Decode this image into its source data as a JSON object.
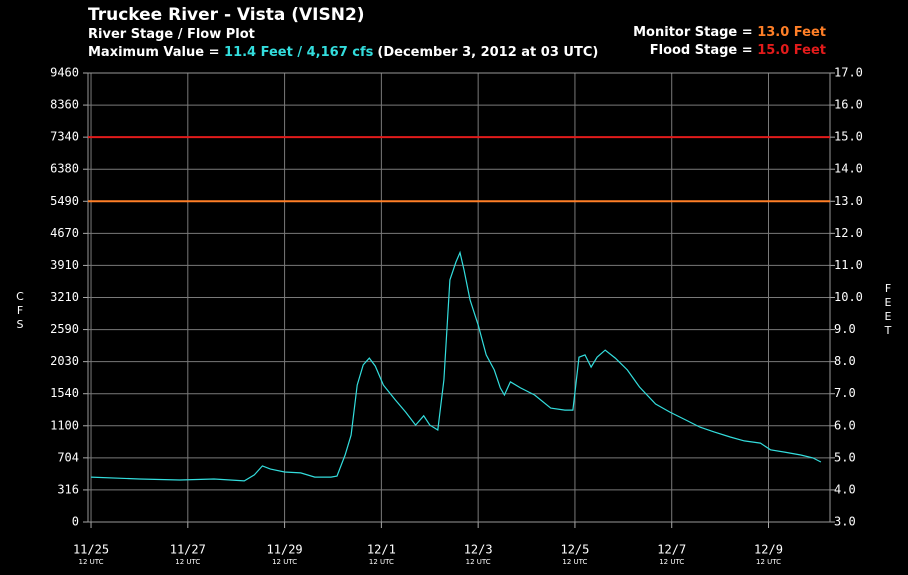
{
  "chart_data": {
    "type": "line",
    "title": "Truckee River - Vista (VISN2)",
    "subtitle": "River Stage / Flow Plot",
    "max_label": "Maximum Value = ",
    "max_value_label": "11.4 Feet / 4,167 cfs",
    "max_value": 11.4,
    "max_time": "(December 3, 2012 at 03 UTC)",
    "max_color": "#33dddd",
    "thresholds": [
      {
        "label": "Monitor Stage = ",
        "value_label": "13.0 Feet",
        "value": 13,
        "color": "#ff7f27"
      },
      {
        "label": "Flood Stage = ",
        "value_label": "15.0 Feet",
        "value": 15,
        "color": "#e31b1b"
      }
    ],
    "y_label": "FEET",
    "cfs_label": "CFS",
    "x_sublabel": "12 UTC",
    "xlim": [
      "11/25 10:30",
      "12/10 18:30"
    ],
    "xticks": [
      {
        "value": "11/25 12:00",
        "label": "11/25"
      },
      {
        "value": "11/27 12:00",
        "label": "11/27"
      },
      {
        "value": "11/29 12:00",
        "label": "11/29"
      },
      {
        "value": "12/1 12:00",
        "label": "12/1"
      },
      {
        "value": "12/3 12:00",
        "label": "12/3"
      },
      {
        "value": "12/5 12:00",
        "label": "12/5"
      },
      {
        "value": "12/7 12:00",
        "label": "12/7"
      },
      {
        "value": "12/9 12:00",
        "label": "12/9"
      }
    ],
    "ylim": [
      3,
      17
    ],
    "yticks": [
      {
        "value": 3,
        "label": "3.0"
      },
      {
        "value": 4,
        "label": "4.0"
      },
      {
        "value": 5,
        "label": "5.0"
      },
      {
        "value": 6,
        "label": "6.0"
      },
      {
        "value": 7,
        "label": "7.0"
      },
      {
        "value": 8,
        "label": "8.0"
      },
      {
        "value": 9,
        "label": "9.0"
      },
      {
        "value": 10,
        "label": "10.0"
      },
      {
        "value": 11,
        "label": "11.0"
      },
      {
        "value": 12,
        "label": "12.0"
      },
      {
        "value": 13,
        "label": "13.0"
      },
      {
        "value": 14,
        "label": "14.0"
      },
      {
        "value": 15,
        "label": "15.0"
      },
      {
        "value": 16,
        "label": "16.0"
      },
      {
        "value": 17,
        "label": "17.0"
      }
    ],
    "cfs_ticks": [
      {
        "value": 3,
        "label": "0"
      },
      {
        "value": 4,
        "label": "316"
      },
      {
        "value": 5,
        "label": "704"
      },
      {
        "value": 6,
        "label": "1100"
      },
      {
        "value": 7,
        "label": "1540"
      },
      {
        "value": 8,
        "label": "2030"
      },
      {
        "value": 9,
        "label": "2590"
      },
      {
        "value": 10,
        "label": "3210"
      },
      {
        "value": 11,
        "label": "3910"
      },
      {
        "value": 12,
        "label": "4670"
      },
      {
        "value": 13,
        "label": "5490"
      },
      {
        "value": 14,
        "label": "6380"
      },
      {
        "value": 15,
        "label": "7340"
      },
      {
        "value": 16,
        "label": "8360"
      },
      {
        "value": 17,
        "label": "9460"
      }
    ],
    "grid": true,
    "x": [
      "11/25 12:00",
      "11/26 12:00",
      "11/27 08:00",
      "11/28 01:00",
      "11/28 16:00",
      "11/28 21:00",
      "11/29 01:00",
      "11/29 05:00",
      "11/29 12:00",
      "11/29 20:00",
      "11/30 03:00",
      "11/30 11:00",
      "11/30 14:00",
      "11/30 18:00",
      "11/30 21:00",
      "12/1 00:00",
      "12/1 03:00",
      "12/1 06:00",
      "12/1 09:00",
      "12/1 13:00",
      "12/1 19:00",
      "12/2 00:00",
      "12/2 05:00",
      "12/2 09:00",
      "12/2 12:00",
      "12/2 16:00",
      "12/2 19:00",
      "12/2 22:00",
      "12/3 01:00",
      "12/3 03:00",
      "12/3 05:00",
      "12/3 08:00",
      "12/3 12:00",
      "12/3 16:00",
      "12/3 20:00",
      "12/3 23:00",
      "12/4 01:00",
      "12/4 04:00",
      "12/4 09:00",
      "12/4 16:00",
      "12/5 00:00",
      "12/5 07:00",
      "12/5 11:00",
      "12/5 14:00",
      "12/5 17:00",
      "12/5 20:00",
      "12/5 23:00",
      "12/6 03:00",
      "12/6 08:00",
      "12/6 14:00",
      "12/6 20:00",
      "12/7 04:00",
      "12/7 11:00",
      "12/7 19:00",
      "12/8 02:00",
      "12/8 09:00",
      "12/8 17:00",
      "12/9 00:00",
      "12/9 08:00",
      "12/9 13:00",
      "12/9 20:00",
      "12/10 04:00",
      "12/10 10:00",
      "12/10 14:00"
    ],
    "series": [
      {
        "name": "River Stage",
        "color": "#33dddd",
        "values": [
          4.4,
          4.34,
          4.31,
          4.34,
          4.28,
          4.47,
          4.75,
          4.65,
          4.56,
          4.53,
          4.4,
          4.4,
          4.43,
          5.09,
          5.71,
          7.27,
          7.9,
          8.11,
          7.86,
          7.27,
          6.8,
          6.43,
          6.02,
          6.31,
          6.02,
          5.87,
          7.43,
          10.55,
          11.11,
          11.4,
          10.86,
          9.92,
          9.14,
          8.21,
          7.74,
          7.18,
          6.96,
          7.37,
          7.18,
          6.96,
          6.55,
          6.49,
          6.49,
          8.14,
          8.21,
          7.83,
          8.14,
          8.36,
          8.11,
          7.74,
          7.21,
          6.68,
          6.43,
          6.18,
          5.96,
          5.81,
          5.65,
          5.53,
          5.46,
          5.25,
          5.18,
          5.09,
          5.0,
          4.87
        ]
      }
    ]
  }
}
